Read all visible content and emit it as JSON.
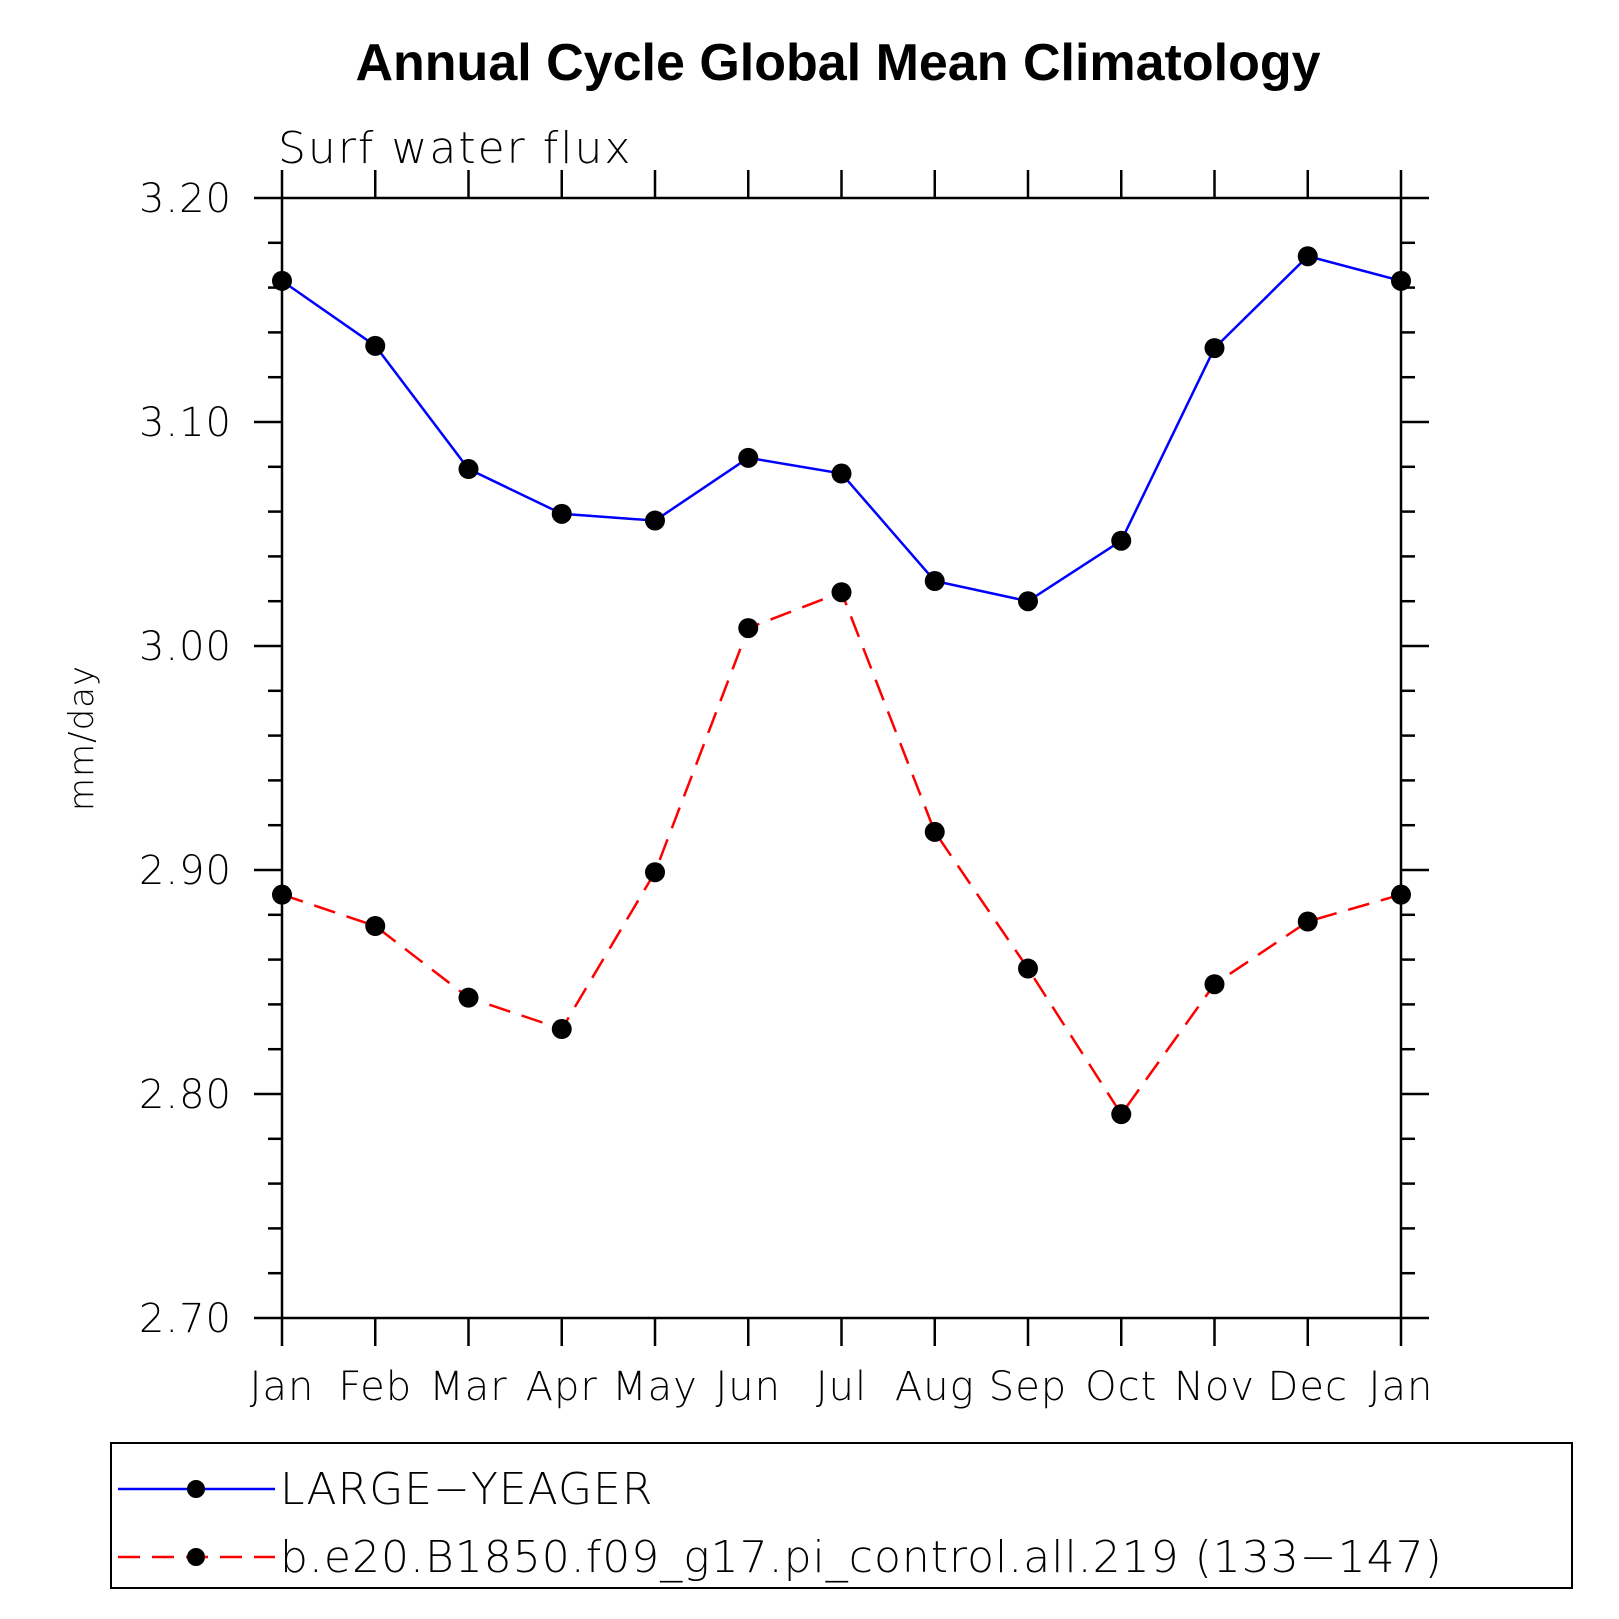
{
  "chart_data": {
    "type": "line",
    "title": "Annual Cycle Global Mean Climatology",
    "subtitle": "Surf water flux",
    "xlabel": "",
    "ylabel": "mm/day",
    "categories": [
      "Jan",
      "Feb",
      "Mar",
      "Apr",
      "May",
      "Jun",
      "Jul",
      "Aug",
      "Sep",
      "Oct",
      "Nov",
      "Dec",
      "Jan"
    ],
    "ylim": [
      2.7,
      3.2
    ],
    "yticks": [
      "2.70",
      "2.80",
      "2.90",
      "3.00",
      "3.10",
      "3.20"
    ],
    "ytick_values": [
      2.7,
      2.8,
      2.9,
      3.0,
      3.1,
      3.2
    ],
    "grid": false,
    "legend_position": "bottom",
    "series": [
      {
        "name": "LARGE−YEAGER",
        "color": "#0000ff",
        "style": "solid",
        "marker": "filled-circle",
        "values": [
          3.163,
          3.134,
          3.079,
          3.059,
          3.056,
          3.084,
          3.077,
          3.029,
          3.02,
          3.047,
          3.133,
          3.174,
          3.163
        ]
      },
      {
        "name": "b.e20.B1850.f09_g17.pi_control.all.219 (133−147)",
        "color": "#ff0000",
        "style": "dashed",
        "marker": "filled-circle",
        "values": [
          2.889,
          2.875,
          2.843,
          2.829,
          2.899,
          3.008,
          3.024,
          2.917,
          2.856,
          2.791,
          2.849,
          2.877,
          2.889
        ]
      }
    ]
  }
}
